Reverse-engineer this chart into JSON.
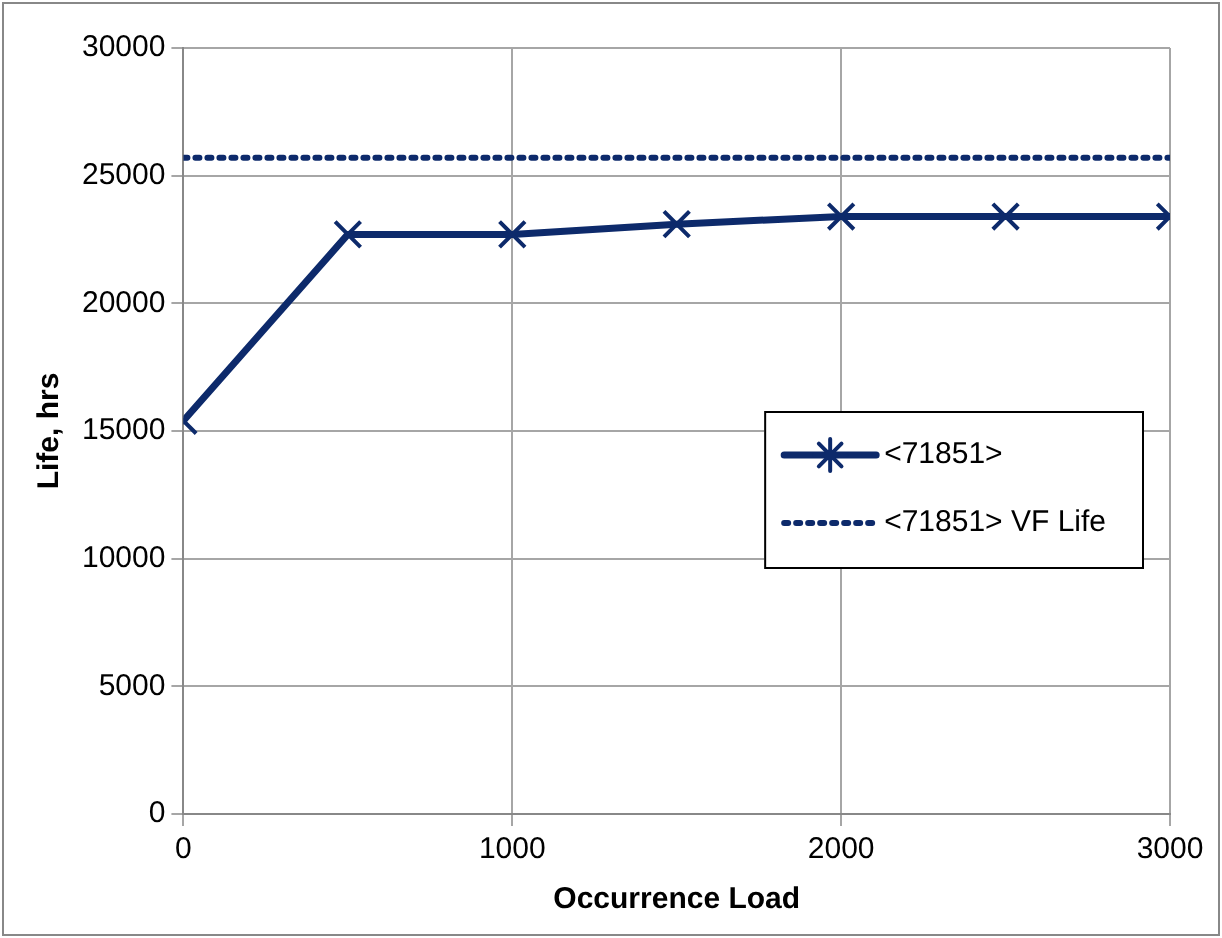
{
  "chart_data": {
    "type": "line",
    "xlabel": "Occurrence Load",
    "ylabel": "Life, hrs",
    "x": [
      0,
      500,
      1000,
      1500,
      2000,
      2500,
      3000
    ],
    "series": [
      {
        "name": "<71851>",
        "color": "#0d2a6b",
        "values": [
          15400,
          22700,
          22700,
          23100,
          23400,
          23400,
          23400
        ],
        "marker": "cross",
        "line_style": "solid"
      },
      {
        "name": "<71851> VF Life",
        "color": "#0d2a6b",
        "values": [
          25700,
          25700,
          25700,
          25700,
          25700,
          25700,
          25700
        ],
        "marker": "none",
        "line_style": "dotted"
      }
    ],
    "xlim": [
      0,
      3000
    ],
    "xticks": [
      0,
      1000,
      2000,
      3000
    ],
    "ylim": [
      0,
      30000
    ],
    "yticks": [
      0,
      5000,
      10000,
      15000,
      20000,
      25000,
      30000
    ],
    "grid": true,
    "legend": "right"
  }
}
